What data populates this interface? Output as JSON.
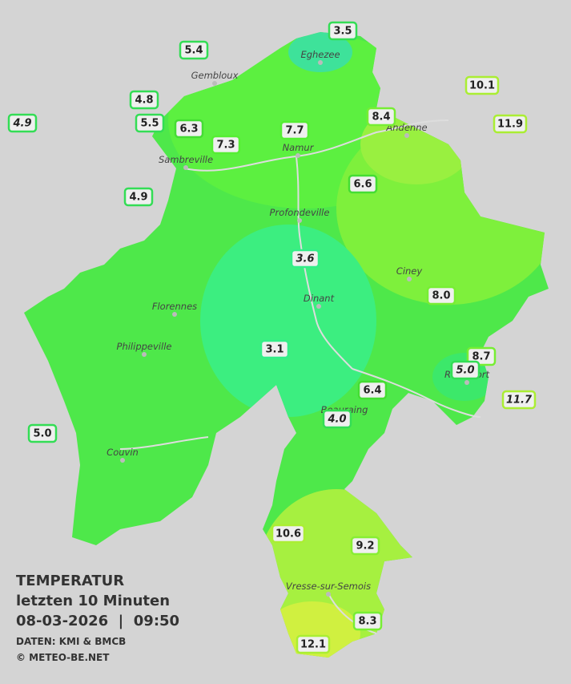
{
  "title": {
    "line1": "TEMPERATUR",
    "line2": "letzten 10 Minuten",
    "line3": "08-03-2026  |  09:50",
    "credit1": "DATEN: KMI & BMCB",
    "credit2": "© METEO-BE.NET"
  },
  "towns": [
    "Eghezee",
    "Gembloux",
    "Andenne",
    "Namur",
    "Sambreville",
    "Profondeville",
    "Ciney",
    "Dinant",
    "Florennes",
    "Philippeville",
    "Rochefort",
    "Beauraing",
    "Couvin",
    "Vresse-sur-Semois"
  ],
  "stations": [
    {
      "value": "3.5",
      "italic": false,
      "color": "#33dd55"
    },
    {
      "value": "5.4",
      "italic": false,
      "color": "#33dd55"
    },
    {
      "value": "4.8",
      "italic": false,
      "color": "#33dd55"
    },
    {
      "value": "5.5",
      "italic": false,
      "color": "#33dd55"
    },
    {
      "value": "6.3",
      "italic": false,
      "color": "#44dd33"
    },
    {
      "value": "7.3",
      "italic": false,
      "color": "#55ee33"
    },
    {
      "value": "7.7",
      "italic": false,
      "color": "#55ee33"
    },
    {
      "value": "8.4",
      "italic": false,
      "color": "#77ee33"
    },
    {
      "value": "10.1",
      "italic": false,
      "color": "#aaee33"
    },
    {
      "value": "11.9",
      "italic": false,
      "color": "#aaee33"
    },
    {
      "value": "4.9",
      "italic": true,
      "color": "#33dd55"
    },
    {
      "value": "4.9",
      "italic": false,
      "color": "#33dd55"
    },
    {
      "value": "6.6",
      "italic": false,
      "color": "#44dd33"
    },
    {
      "value": "3.6",
      "italic": true,
      "color": "#33ee88"
    },
    {
      "value": "8.0",
      "italic": false,
      "color": "#77ee33"
    },
    {
      "value": "3.1",
      "italic": false,
      "color": "#33ee88"
    },
    {
      "value": "8.7",
      "italic": false,
      "color": "#77ee33"
    },
    {
      "value": "5.0",
      "italic": true,
      "color": "#33dd55"
    },
    {
      "value": "6.4",
      "italic": false,
      "color": "#44dd33"
    },
    {
      "value": "4.0",
      "italic": true,
      "color": "#33dd55"
    },
    {
      "value": "11.7",
      "italic": true,
      "color": "#aaee33"
    },
    {
      "value": "5.0",
      "italic": false,
      "color": "#33dd55"
    },
    {
      "value": "10.6",
      "italic": false,
      "color": "#aaee33"
    },
    {
      "value": "9.2",
      "italic": false,
      "color": "#88ee33"
    },
    {
      "value": "8.3",
      "italic": false,
      "color": "#77ee33"
    },
    {
      "value": "12.1",
      "italic": false,
      "color": "#aaee33"
    }
  ]
}
